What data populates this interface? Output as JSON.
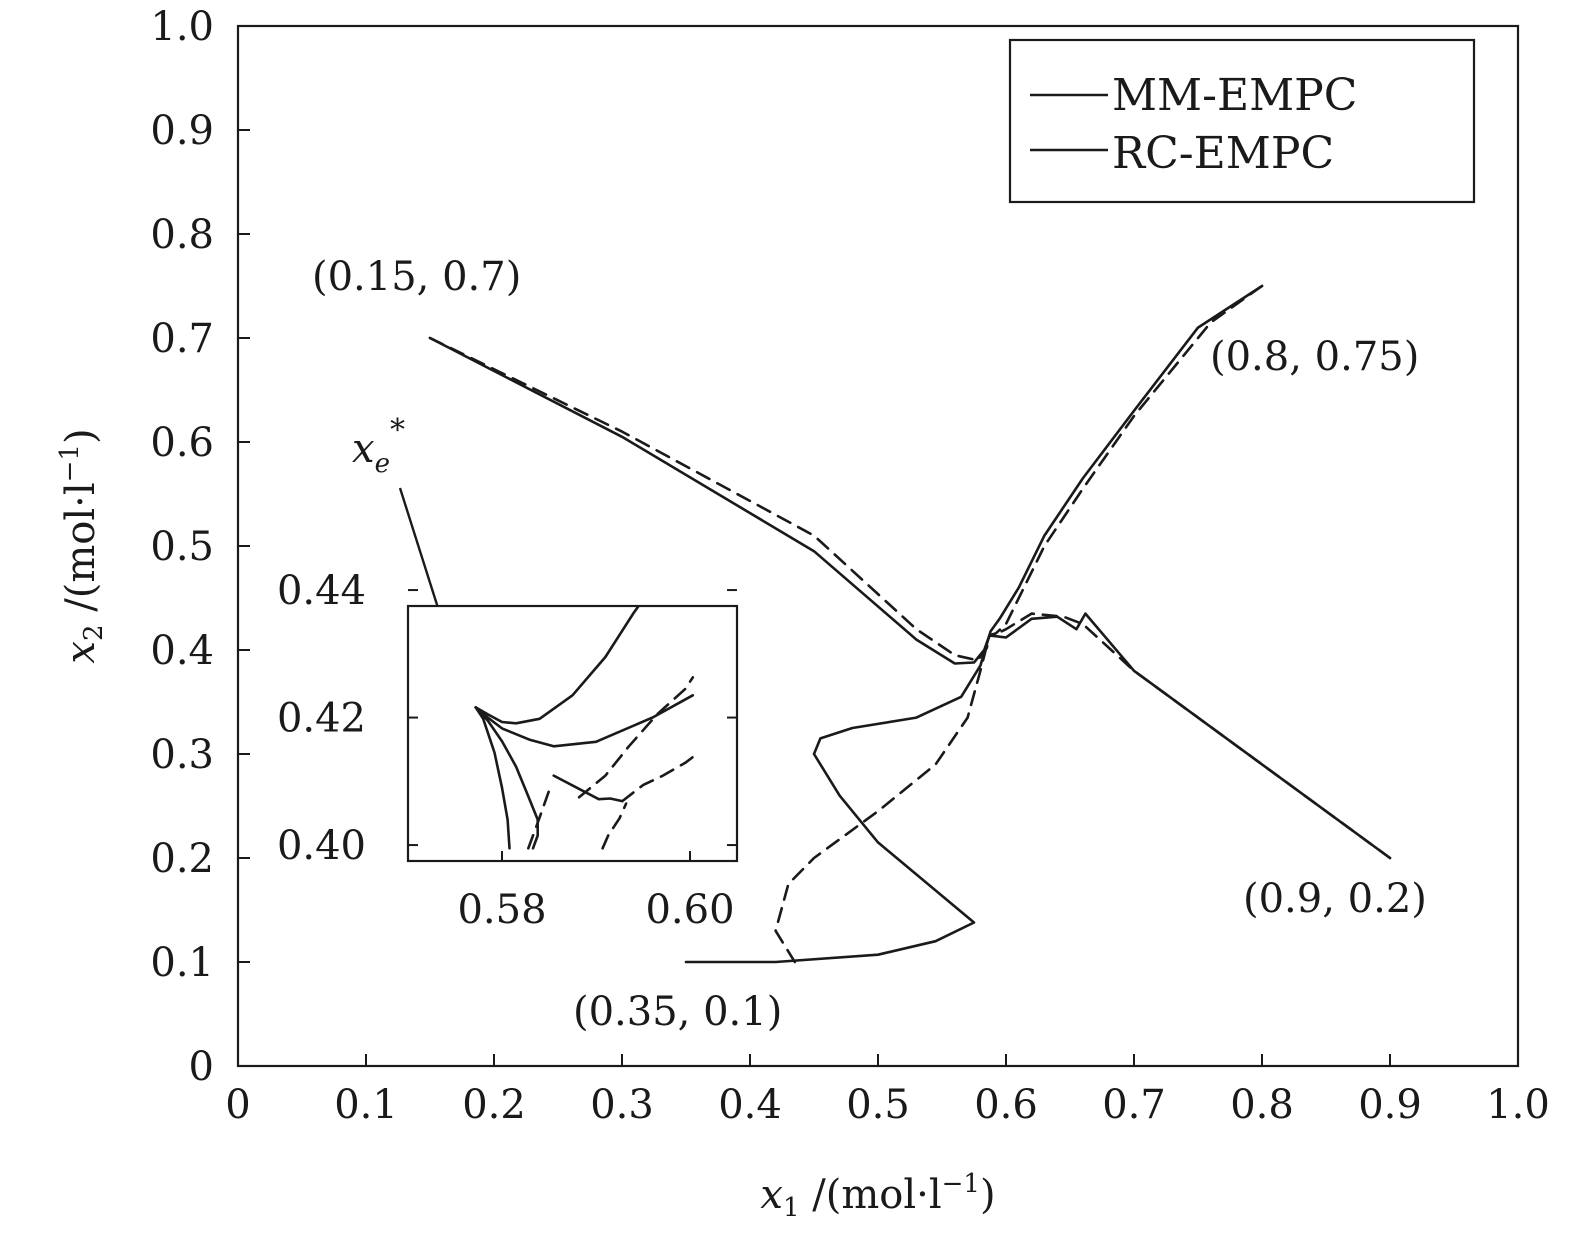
{
  "chart_data": {
    "type": "line",
    "xlabel": "x1 /(mol·l⁻¹)",
    "ylabel": "x2 /(mol·l⁻¹)",
    "xlim": [
      0,
      1.0
    ],
    "ylim": [
      0,
      1.0
    ],
    "x_ticks": [
      "0",
      "0.1",
      "0.2",
      "0.3",
      "0.4",
      "0.5",
      "0.6",
      "0.7",
      "0.8",
      "0.9",
      "1.0"
    ],
    "y_ticks": [
      "0",
      "0.1",
      "0.2",
      "0.3",
      "0.4",
      "0.5",
      "0.6",
      "0.7",
      "0.8",
      "0.9",
      "1.0"
    ],
    "grid": false,
    "legend": {
      "position": "top-right",
      "entries": [
        {
          "label": "MM-EMPC",
          "style": "solid"
        },
        {
          "label": "RC-EMPC",
          "style": "solid"
        }
      ]
    },
    "annotations": [
      {
        "text": "(0.15, 0.7)",
        "x": 0.15,
        "y": 0.7
      },
      {
        "text": "(0.8, 0.75)",
        "x": 0.8,
        "y": 0.75
      },
      {
        "text": "(0.9, 0.2)",
        "x": 0.9,
        "y": 0.2
      },
      {
        "text": "(0.35, 0.1)",
        "x": 0.35,
        "y": 0.1
      },
      {
        "text": "x_e*",
        "x": 0.587,
        "y": 0.414
      }
    ],
    "series": [
      {
        "style": "solid",
        "x": [
          0.15,
          0.3,
          0.45,
          0.53,
          0.56,
          0.575,
          0.583,
          0.587
        ],
        "y": [
          0.7,
          0.605,
          0.495,
          0.41,
          0.387,
          0.388,
          0.4,
          0.414
        ]
      },
      {
        "style": "dashed",
        "x": [
          0.15,
          0.3,
          0.45,
          0.53,
          0.56,
          0.578,
          0.585,
          0.587
        ],
        "y": [
          0.7,
          0.61,
          0.51,
          0.42,
          0.395,
          0.39,
          0.402,
          0.414
        ]
      },
      {
        "style": "solid",
        "x": [
          0.8,
          0.75,
          0.7,
          0.66,
          0.63,
          0.61,
          0.595,
          0.588,
          0.587
        ],
        "y": [
          0.75,
          0.71,
          0.63,
          0.565,
          0.51,
          0.46,
          0.43,
          0.418,
          0.414
        ]
      },
      {
        "style": "dashed",
        "x": [
          0.8,
          0.76,
          0.7,
          0.66,
          0.63,
          0.61,
          0.6,
          0.592,
          0.587
        ],
        "y": [
          0.75,
          0.715,
          0.625,
          0.555,
          0.5,
          0.45,
          0.425,
          0.416,
          0.414
        ]
      },
      {
        "style": "solid",
        "x": [
          0.9,
          0.8,
          0.7,
          0.662,
          0.655,
          0.64,
          0.62,
          0.6,
          0.587
        ],
        "y": [
          0.2,
          0.29,
          0.38,
          0.435,
          0.42,
          0.432,
          0.43,
          0.412,
          0.414
        ]
      },
      {
        "style": "dashed",
        "x": [
          0.9,
          0.8,
          0.7,
          0.66,
          0.645,
          0.62,
          0.6,
          0.59,
          0.587
        ],
        "y": [
          0.2,
          0.29,
          0.38,
          0.425,
          0.432,
          0.435,
          0.42,
          0.414,
          0.414
        ]
      },
      {
        "style": "solid",
        "x": [
          0.35,
          0.42,
          0.5,
          0.545,
          0.575,
          0.5,
          0.47,
          0.45,
          0.455,
          0.48,
          0.53,
          0.565,
          0.58,
          0.587
        ],
        "y": [
          0.1,
          0.1,
          0.107,
          0.12,
          0.138,
          0.215,
          0.26,
          0.3,
          0.315,
          0.325,
          0.335,
          0.355,
          0.385,
          0.414
        ]
      },
      {
        "style": "dashed",
        "x": [
          0.435,
          0.42,
          0.43,
          0.45,
          0.5,
          0.545,
          0.57,
          0.58,
          0.587
        ],
        "y": [
          0.1,
          0.13,
          0.175,
          0.2,
          0.245,
          0.29,
          0.335,
          0.38,
          0.414
        ]
      }
    ],
    "inset": {
      "xlim": [
        0.57,
        0.605
      ],
      "ylim": [
        0.3975,
        0.4375
      ],
      "x_ticks": [
        "0.58",
        "0.60"
      ],
      "y_ticks": [
        "0.40",
        "0.42",
        "0.44"
      ],
      "series": [
        {
          "style": "solid",
          "x": [
            0.5772,
            0.5785,
            0.58,
            0.5815,
            0.584,
            0.5875,
            0.591,
            0.594,
            0.5955
          ],
          "y": [
            0.4216,
            0.4205,
            0.4193,
            0.4191,
            0.4198,
            0.4235,
            0.4295,
            0.4364,
            0.4395
          ]
        },
        {
          "style": "solid",
          "x": [
            0.5772,
            0.5785,
            0.58,
            0.583,
            0.5855,
            0.59,
            0.596,
            0.6003
          ],
          "y": [
            0.4216,
            0.42,
            0.4183,
            0.4165,
            0.4155,
            0.4162,
            0.42,
            0.4235
          ]
        },
        {
          "style": "solid",
          "x": [
            0.5772,
            0.578,
            0.5792,
            0.58,
            0.5806,
            0.5808
          ],
          "y": [
            0.4216,
            0.4198,
            0.4145,
            0.409,
            0.404,
            0.3995
          ]
        },
        {
          "style": "solid",
          "x": [
            0.5772,
            0.5785,
            0.58,
            0.5815,
            0.5827,
            0.5838,
            0.5838,
            0.5833
          ],
          "y": [
            0.4216,
            0.4195,
            0.4163,
            0.4123,
            0.408,
            0.404,
            0.4015,
            0.3995
          ]
        },
        {
          "style": "solid",
          "x": [
            0.5855,
            0.5903,
            0.5915,
            0.5928
          ],
          "y": [
            0.4109,
            0.4072,
            0.4073,
            0.4069
          ]
        },
        {
          "style": "dashed",
          "x": [
            0.5882,
            0.591,
            0.5935,
            0.5965,
            0.5995,
            0.6003
          ],
          "y": [
            0.4075,
            0.4109,
            0.4155,
            0.4205,
            0.4245,
            0.4263
          ]
        },
        {
          "style": "dashed",
          "x": [
            0.5928,
            0.595,
            0.597,
            0.5995,
            0.6003
          ],
          "y": [
            0.4069,
            0.4094,
            0.4108,
            0.4129,
            0.4138
          ]
        },
        {
          "style": "dashed",
          "x": [
            0.5828,
            0.5838,
            0.585
          ],
          "y": [
            0.3995,
            0.4035,
            0.4085
          ]
        },
        {
          "style": "dashed",
          "x": [
            0.5907,
            0.5913,
            0.5925,
            0.5932
          ],
          "y": [
            0.3995,
            0.4015,
            0.4042,
            0.4065
          ]
        }
      ]
    }
  }
}
